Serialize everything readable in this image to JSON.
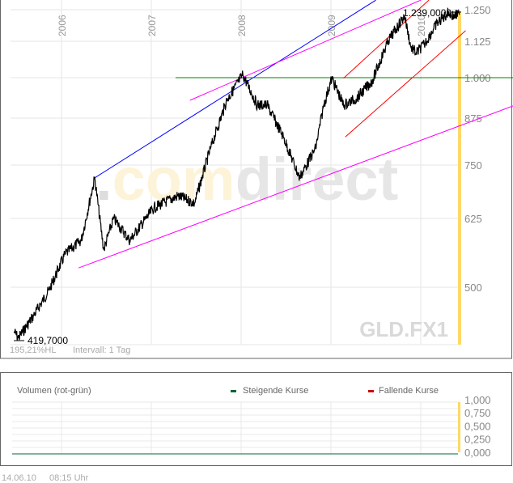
{
  "chart_data": {
    "type": "line",
    "symbol": "GLD.FX1",
    "watermark": {
      "dot": ".",
      "com": "com",
      "direct": "direct"
    },
    "x_tick_labels": [
      "2006",
      "2007",
      "2008",
      "2009",
      "2010"
    ],
    "x_ticks": [
      2006,
      2007,
      2008,
      2009,
      2010
    ],
    "y_tick_labels": [
      "1.250",
      "1.125",
      "1.000",
      "875",
      "750",
      "625",
      "500"
    ],
    "y_ticks": [
      1250,
      1125,
      1000,
      875,
      750,
      625,
      500
    ],
    "y_scale": "log",
    "high_label": "1.239,0000",
    "low_label": "419,7000",
    "high": 1239,
    "low": 419.7,
    "range_info": "195,21%HL",
    "interval": "Intervall: 1 Tag",
    "series": [
      {
        "name": "GLD.FX1",
        "x": [
          2005.47,
          2005.52,
          2005.69,
          2005.86,
          2006.04,
          2006.22,
          2006.37,
          2006.47,
          2006.58,
          2006.76,
          2007.03,
          2007.3,
          2007.48,
          2007.66,
          2007.84,
          2008.02,
          2008.18,
          2008.29,
          2008.47,
          2008.65,
          2008.83,
          2008.92,
          2009.01,
          2009.14,
          2009.28,
          2009.46,
          2009.64,
          2009.82,
          2009.89,
          2009.95,
          2010.04,
          2010.18,
          2010.31,
          2010.36,
          2010.43
        ],
        "y": [
          430,
          419.7,
          455,
          495,
          560,
          585,
          720,
          568,
          625,
          585,
          650,
          678,
          660,
          795,
          930,
          1010,
          915,
          915,
          825,
          720,
          795,
          915,
          998,
          915,
          935,
          990,
          1128,
          1225,
          1105,
          1085,
          1115,
          1195,
          1239,
          1225,
          1230
        ]
      }
    ],
    "trend_lines": [
      {
        "color": "#0000ff",
        "from": [
          2006.37,
          720
        ],
        "to": [
          2009.5,
          1288
        ]
      },
      {
        "color": "#ff00ff",
        "from": [
          2007.43,
          930
        ],
        "to": [
          2010.0,
          1288
        ]
      },
      {
        "color": "#ff00ff",
        "from": [
          2006.19,
          535
        ],
        "to": [
          2011.03,
          913
        ]
      },
      {
        "color": "#008000",
        "from": [
          2007.27,
          1000
        ],
        "to": [
          2011.03,
          1000
        ]
      },
      {
        "color": "#ff0000",
        "from": [
          2009.14,
          998
        ],
        "to": [
          2010.09,
          1288
        ]
      },
      {
        "color": "#ff0000",
        "from": [
          2009.16,
          825
        ],
        "to": [
          2010.5,
          1167
        ]
      }
    ],
    "current_marker_color": "#ffd966"
  },
  "volume": {
    "title": "Volumen (rot-grün)",
    "legend": [
      {
        "label": "Steigende Kurse",
        "color": "#006633"
      },
      {
        "label": "Fallende Kurse",
        "color": "#cc0000"
      }
    ],
    "y_tick_labels": [
      "1,000",
      "0,750",
      "0,500",
      "0,250",
      "0,000"
    ]
  },
  "footer": {
    "date": "14.06.10",
    "time": "08:15 Uhr"
  }
}
